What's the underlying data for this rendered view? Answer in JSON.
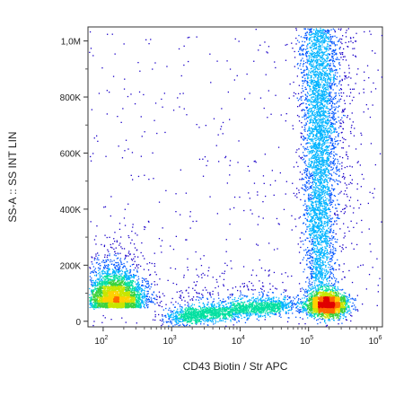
{
  "chart_data": {
    "type": "scatter",
    "plot_style": "flow cytometry density dot plot (pseudocolor)",
    "xlabel": "CD43 Biotin / Str APC",
    "ylabel": "SS-A :: SS INT LIN",
    "x_scale": "log",
    "xlim": [
      60,
      1200000
    ],
    "ylim": [
      -20000,
      1050000
    ],
    "x_ticks": [
      {
        "value": 100,
        "base": "10",
        "exp": "2"
      },
      {
        "value": 1000,
        "base": "10",
        "exp": "3"
      },
      {
        "value": 10000,
        "base": "10",
        "exp": "4"
      },
      {
        "value": 100000,
        "base": "10",
        "exp": "5"
      },
      {
        "value": 1000000,
        "base": "10",
        "exp": "6"
      }
    ],
    "y_ticks": [
      {
        "value": 0,
        "label": "0"
      },
      {
        "value": 200000,
        "label": "200K"
      },
      {
        "value": 400000,
        "label": "400K"
      },
      {
        "value": 600000,
        "label": "600K"
      },
      {
        "value": 800000,
        "label": "800K"
      },
      {
        "value": 1000000,
        "label": "1,0M"
      }
    ],
    "populations": [
      {
        "description": "low-CD43 low-scatter cluster",
        "x_center": 150,
        "y_center": 70000,
        "count": 3200
      },
      {
        "description": "diagonal band toward high CD43",
        "x_from": 1000,
        "x_to": 50000,
        "y_center": 40000,
        "count": 2200
      },
      {
        "description": "high-CD43 low-scatter cluster",
        "x_center": 180000,
        "y_center": 60000,
        "count": 2600
      },
      {
        "description": "high-CD43 vertical column with high scatter",
        "x_center": 140000,
        "y_from": 100000,
        "y_to": 1050000,
        "count": 4200
      }
    ],
    "density_colors": [
      "#1a00c8",
      "#0055ff",
      "#00b4ff",
      "#00e0a0",
      "#3cd23c",
      "#c8e600",
      "#ffd000",
      "#ff6a00",
      "#e00000"
    ]
  }
}
